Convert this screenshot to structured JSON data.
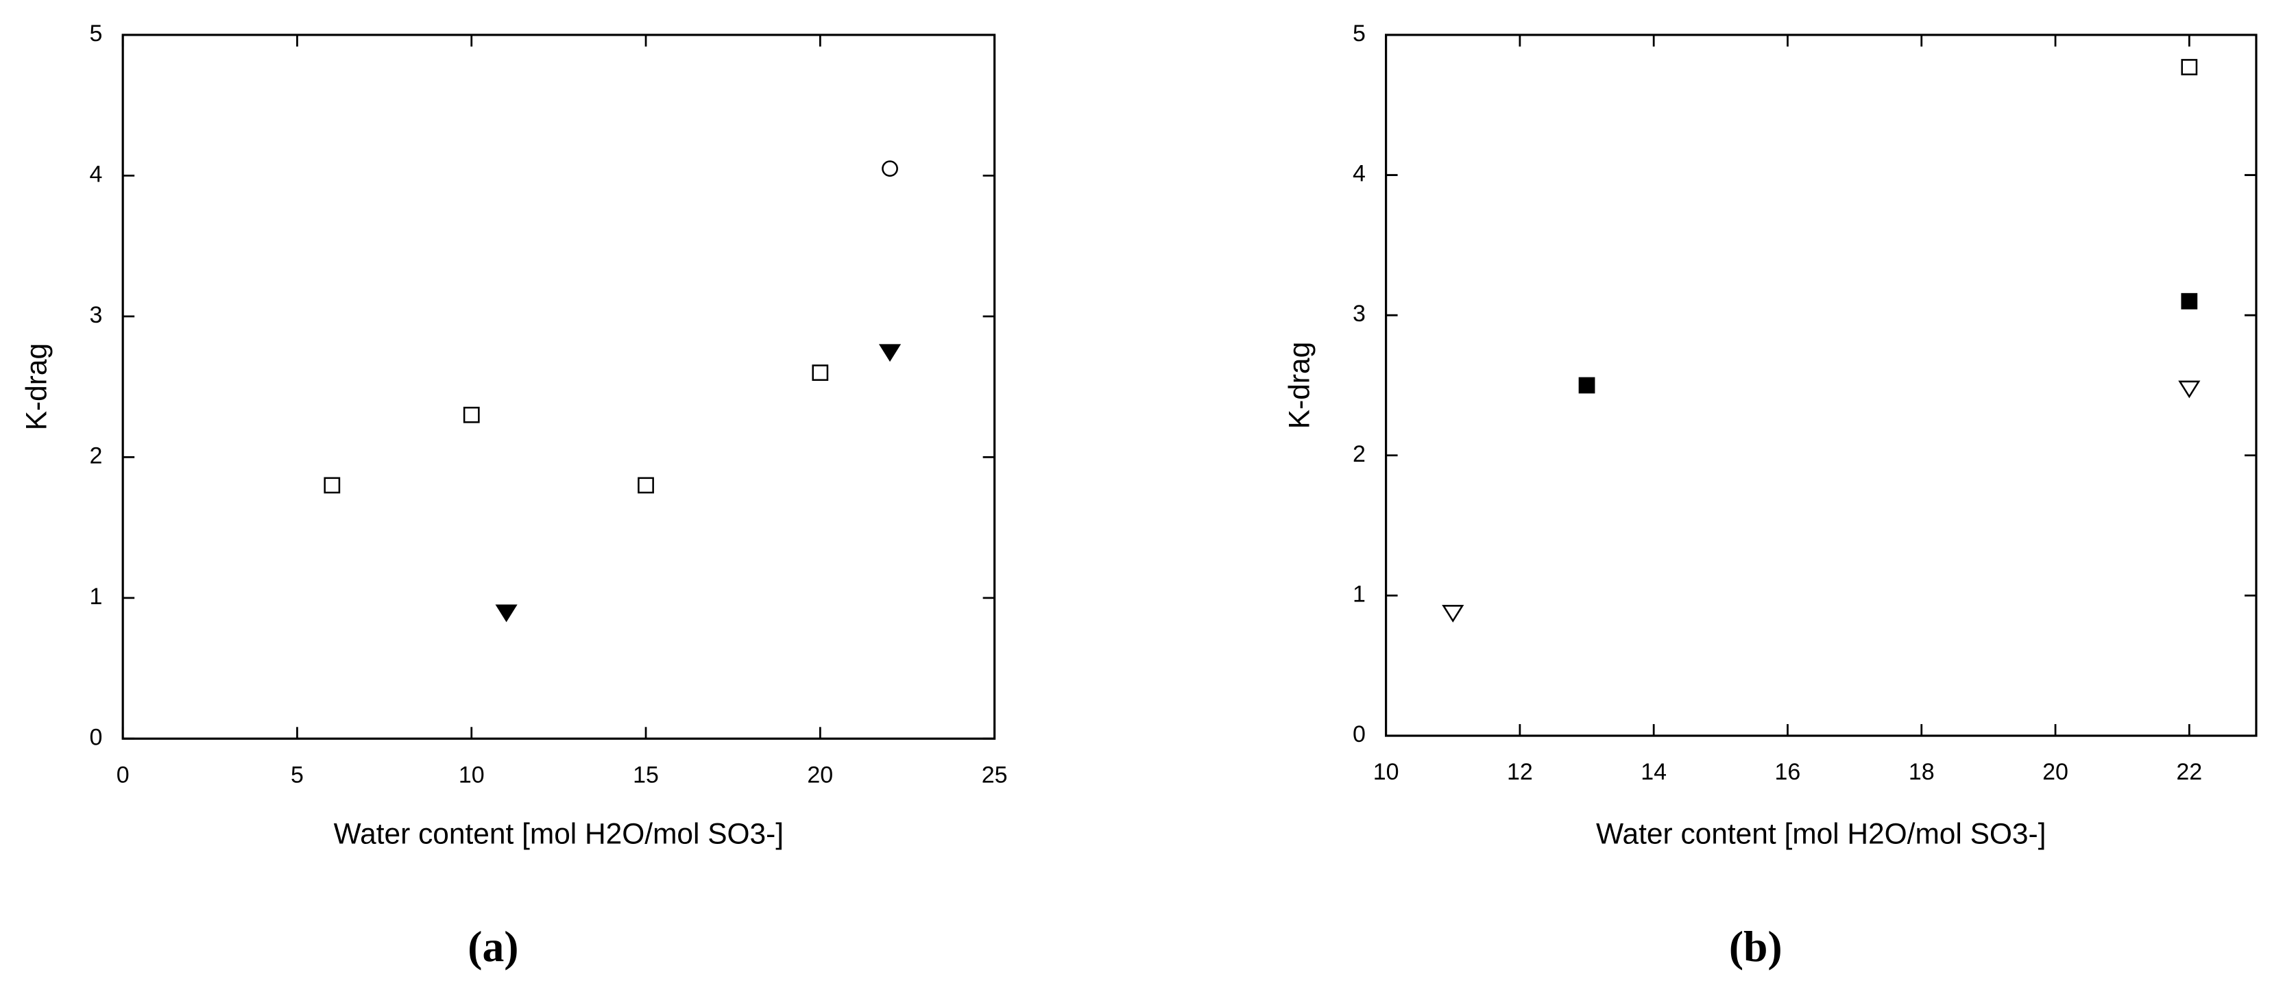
{
  "chart_data": [
    {
      "type": "scatter",
      "caption": "(a)",
      "xlabel": "Water content [mol H2O/mol SO3-]",
      "ylabel": "K-drag",
      "xlim": [
        0,
        25
      ],
      "xticks": [
        0,
        5,
        10,
        15,
        20,
        25
      ],
      "ylim": [
        0,
        5
      ],
      "yticks": [
        0,
        1,
        2,
        3,
        4,
        5
      ],
      "series": [
        {
          "marker": "square-open",
          "color": "#000000",
          "x": [
            6,
            10,
            15,
            20
          ],
          "values": [
            1.8,
            2.3,
            1.8,
            2.6
          ]
        },
        {
          "marker": "triangle-down-filled",
          "color": "#000000",
          "x": [
            11,
            22
          ],
          "values": [
            0.9,
            2.75
          ]
        },
        {
          "marker": "circle-open",
          "color": "#000000",
          "x": [
            22
          ],
          "values": [
            4.05
          ]
        }
      ]
    },
    {
      "type": "scatter",
      "caption": "(b)",
      "xlabel": "Water content [mol H2O/mol SO3-]",
      "ylabel": "K-drag",
      "xlim": [
        10,
        23
      ],
      "xticks": [
        10,
        12,
        14,
        16,
        18,
        20,
        22
      ],
      "ylim": [
        0,
        5
      ],
      "yticks": [
        0,
        1,
        2,
        3,
        4,
        5
      ],
      "series": [
        {
          "marker": "square-open",
          "color": "#000000",
          "x": [
            22
          ],
          "values": [
            4.77
          ]
        },
        {
          "marker": "square-filled",
          "color": "#000000",
          "x": [
            13,
            22
          ],
          "values": [
            2.5,
            3.1
          ]
        },
        {
          "marker": "triangle-down-open",
          "color": "#000000",
          "x": [
            11,
            22
          ],
          "values": [
            0.88,
            2.48
          ]
        }
      ]
    }
  ]
}
